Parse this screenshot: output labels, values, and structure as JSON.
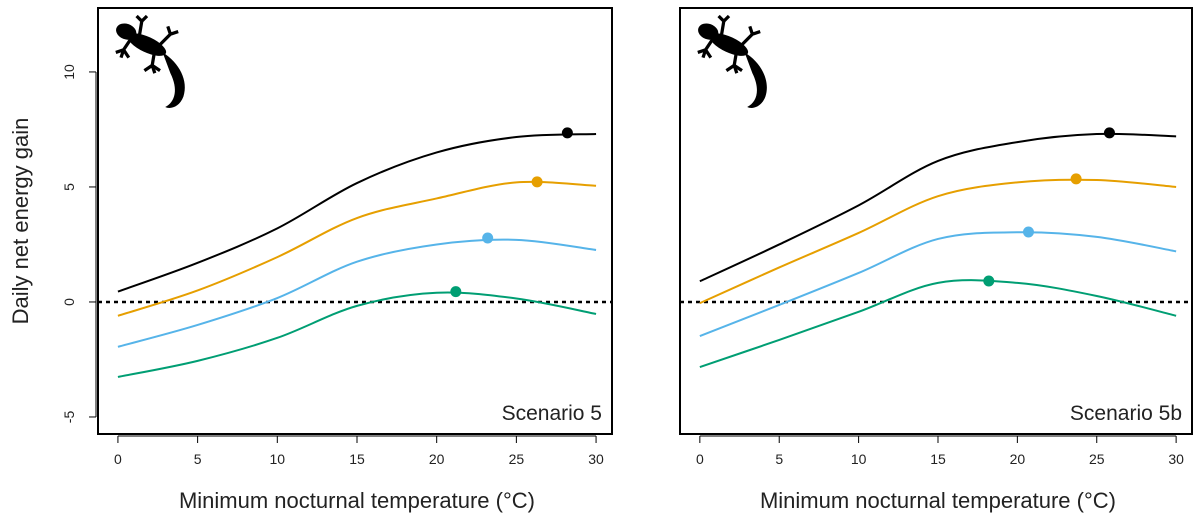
{
  "chart_data": [
    {
      "type": "line",
      "y_label": "Daily net energy gain",
      "x_label": "Minimum nocturnal temperature (°C)",
      "annotation": "Scenario 5",
      "x": [
        0,
        5,
        10,
        15,
        20,
        25,
        30
      ],
      "xlim": [
        -1.25,
        31
      ],
      "xticks": [
        0,
        5,
        10,
        15,
        20,
        25,
        30
      ],
      "ylim": [
        -5.74,
        12.78
      ],
      "yticks": [
        -5,
        0,
        5,
        10
      ],
      "hline": 0,
      "series": [
        {
          "color": "#000000",
          "values": [
            0.45,
            1.7,
            3.2,
            5.17,
            6.5,
            7.17,
            7.3
          ],
          "peak_x": 28.2,
          "peak_y": 7.35
        },
        {
          "color": "#E69F00",
          "values": [
            -0.6,
            0.5,
            1.95,
            3.65,
            4.5,
            5.2,
            5.05
          ],
          "peak_x": 26.3,
          "peak_y": 5.22
        },
        {
          "color": "#56B4E9",
          "values": [
            -1.95,
            -1.0,
            0.17,
            1.75,
            2.5,
            2.7,
            2.26
          ],
          "peak_x": 23.2,
          "peak_y": 2.78
        },
        {
          "color": "#009E73",
          "values": [
            -3.26,
            -2.56,
            -1.56,
            -0.17,
            0.4,
            0.15,
            -0.52
          ],
          "peak_x": 21.2,
          "peak_y": 0.45
        }
      ]
    },
    {
      "type": "line",
      "x_label": "Minimum nocturnal temperature (°C)",
      "annotation": "Scenario 5b",
      "x": [
        0,
        5,
        10,
        15,
        20,
        25,
        30
      ],
      "xlim": [
        -1.25,
        31
      ],
      "xticks": [
        0,
        5,
        10,
        15,
        20,
        25,
        30
      ],
      "ylim": [
        -5.74,
        12.78
      ],
      "hline": 0,
      "series": [
        {
          "color": "#000000",
          "values": [
            0.9,
            2.5,
            4.2,
            6.13,
            6.95,
            7.3,
            7.2
          ],
          "peak_x": 25.8,
          "peak_y": 7.35
        },
        {
          "color": "#E69F00",
          "values": [
            -0.05,
            1.5,
            3.0,
            4.6,
            5.2,
            5.3,
            5.0
          ],
          "peak_x": 23.7,
          "peak_y": 5.35
        },
        {
          "color": "#56B4E9",
          "values": [
            -1.48,
            -0.13,
            1.26,
            2.74,
            3.03,
            2.83,
            2.2
          ],
          "peak_x": 20.7,
          "peak_y": 3.04
        },
        {
          "color": "#009E73",
          "values": [
            -2.83,
            -1.65,
            -0.43,
            0.83,
            0.83,
            0.26,
            -0.6
          ],
          "peak_x": 18.2,
          "peak_y": 0.91
        }
      ]
    }
  ]
}
